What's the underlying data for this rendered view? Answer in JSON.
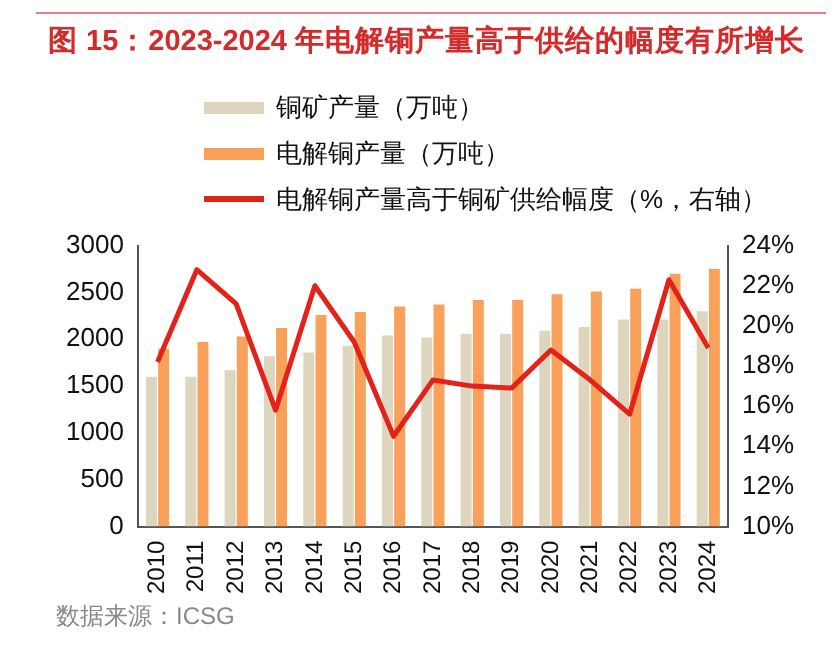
{
  "chart_data": {
    "type": "bar",
    "title": "图 15：2023-2024 年电解铜产量高于供给的幅度有所增长",
    "categories": [
      "2010",
      "2011",
      "2012",
      "2013",
      "2014",
      "2015",
      "2016",
      "2017",
      "2018",
      "2019",
      "2020",
      "2021",
      "2022",
      "2023",
      "2024"
    ],
    "series": [
      {
        "name": "铜矿产量（万吨）",
        "color": "#ddd5bd",
        "values": [
          1600,
          1600,
          1670,
          1820,
          1860,
          1930,
          2040,
          2020,
          2060,
          2060,
          2090,
          2130,
          2210,
          2210,
          2300
        ]
      },
      {
        "name": "电解铜产量（万吨）",
        "color": "#f9a05a",
        "values": [
          1900,
          1970,
          2030,
          2120,
          2260,
          2290,
          2350,
          2370,
          2420,
          2420,
          2480,
          2510,
          2540,
          2700,
          2750
        ]
      },
      {
        "name": "电解铜产量高于铜矿供给幅度（%，右轴）",
        "type": "line",
        "axis": "y2",
        "color": "#e2231a",
        "values": [
          18.2,
          22.8,
          21.1,
          15.8,
          22.0,
          19.2,
          14.5,
          17.3,
          17.0,
          16.9,
          18.8,
          17.3,
          15.6,
          22.3,
          18.9
        ]
      }
    ],
    "ylim": [
      0,
      3000
    ],
    "yticks": [
      0,
      500,
      1000,
      1500,
      2000,
      2500,
      3000
    ],
    "y2lim": [
      10,
      24
    ],
    "y2ticks": [
      {
        "value": 10,
        "label": "10%"
      },
      {
        "value": 12,
        "label": "12%"
      },
      {
        "value": 14,
        "label": "14%"
      },
      {
        "value": 16,
        "label": "16%"
      },
      {
        "value": 18,
        "label": "18%"
      },
      {
        "value": 20,
        "label": "20%"
      },
      {
        "value": 22,
        "label": "22%"
      },
      {
        "value": 24,
        "label": "24%"
      }
    ],
    "grid": false,
    "legend": "top",
    "marker": "none",
    "annotations": [
      "数据来源：ICSG"
    ]
  }
}
